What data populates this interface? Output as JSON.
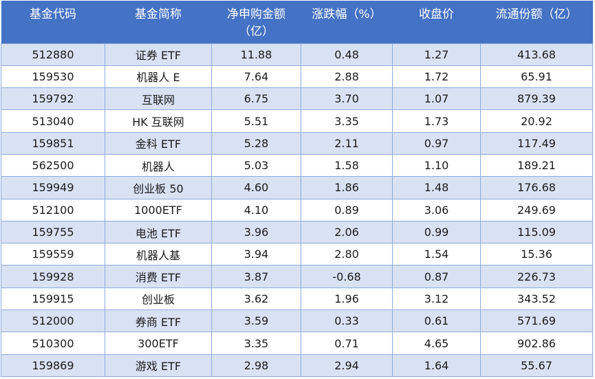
{
  "headers": [
    "基金代码",
    "基金简称",
    "净申购金额（亿）",
    "涨跌幅（%）",
    "收盘价",
    "流通份额（亿）"
  ],
  "rows": [
    [
      "512880",
      "证券 ETF",
      "11.88",
      "0.48",
      "1.27",
      "413.68"
    ],
    [
      "159530",
      "机器人 E",
      "7.64",
      "2.88",
      "1.72",
      "65.91"
    ],
    [
      "159792",
      "互联网",
      "6.75",
      "3.70",
      "1.07",
      "879.39"
    ],
    [
      "513040",
      "HK 互联网",
      "5.51",
      "3.35",
      "1.73",
      "20.92"
    ],
    [
      "159851",
      "金科 ETF",
      "5.28",
      "2.11",
      "0.97",
      "117.49"
    ],
    [
      "562500",
      "机器人",
      "5.03",
      "1.58",
      "1.10",
      "189.21"
    ],
    [
      "159949",
      "创业板 50",
      "4.60",
      "1.86",
      "1.48",
      "176.68"
    ],
    [
      "512100",
      "1000ETF",
      "4.10",
      "0.89",
      "3.06",
      "249.69"
    ],
    [
      "159755",
      "电池 ETF",
      "3.96",
      "2.06",
      "0.99",
      "115.09"
    ],
    [
      "159559",
      "机器人基",
      "3.94",
      "2.80",
      "1.54",
      "15.36"
    ],
    [
      "159928",
      "消费 ETF",
      "3.87",
      "-0.68",
      "0.87",
      "226.73"
    ],
    [
      "159915",
      "创业板",
      "3.62",
      "1.96",
      "3.12",
      "343.52"
    ],
    [
      "512000",
      "券商 ETF",
      "3.59",
      "0.33",
      "0.61",
      "571.69"
    ],
    [
      "510300",
      "300ETF",
      "3.35",
      "0.71",
      "4.65",
      "902.86"
    ],
    [
      "159869",
      "游戏 ETF",
      "2.98",
      "2.94",
      "1.64",
      "55.67"
    ]
  ]
}
